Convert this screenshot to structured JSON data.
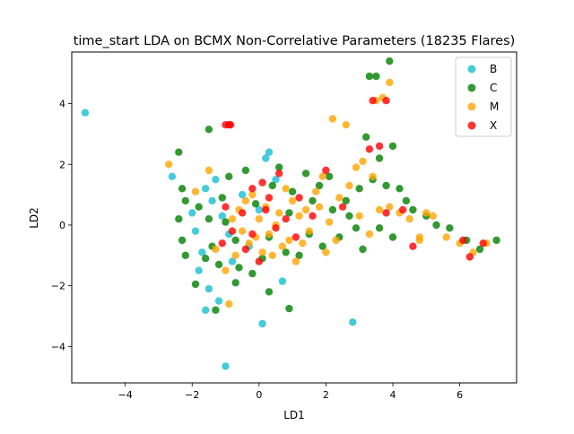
{
  "chart_data": {
    "type": "scatter",
    "title": "time_start LDA on BCMX Non-Correlative Parameters (18235 Flares)",
    "xlabel": "LD1",
    "ylabel": "LD2",
    "xlim": [
      -5.6,
      7.7
    ],
    "ylim": [
      -5.2,
      5.7
    ],
    "xticks": [
      -4,
      -2,
      0,
      2,
      4,
      6
    ],
    "yticks": [
      -4,
      -2,
      0,
      2,
      4
    ],
    "xtick_labels": [
      "−4",
      "−2",
      "0",
      "2",
      "4",
      "6"
    ],
    "ytick_labels": [
      "−4",
      "−2",
      "0",
      "2",
      "4"
    ],
    "grid": false,
    "legend_position": "top-right",
    "series": [
      {
        "name": "B",
        "color": "#17becf",
        "points": [
          [
            -5.2,
            3.7
          ],
          [
            -2.6,
            1.6
          ],
          [
            -1.0,
            -4.65
          ],
          [
            0.1,
            -3.25
          ],
          [
            2.8,
            -3.2
          ],
          [
            0.3,
            2.4
          ],
          [
            0.2,
            2.2
          ],
          [
            -1.6,
            -2.8
          ],
          [
            -1.8,
            -1.5
          ],
          [
            -2.0,
            0.4
          ],
          [
            -1.5,
            -2.1
          ],
          [
            -1.2,
            -2.5
          ],
          [
            -0.9,
            -0.3
          ],
          [
            -1.4,
            0.8
          ],
          [
            0.7,
            -1.85
          ],
          [
            -1.7,
            -0.9
          ],
          [
            -1.3,
            1.5
          ],
          [
            -0.5,
            1.0
          ],
          [
            0.5,
            1.5
          ],
          [
            -1.9,
            -0.2
          ],
          [
            -1.1,
            0.3
          ],
          [
            -0.8,
            -1.2
          ],
          [
            -1.6,
            1.2
          ],
          [
            -0.3,
            -0.7
          ],
          [
            0.0,
            0.5
          ]
        ]
      },
      {
        "name": "C",
        "color": "#008000",
        "points": [
          [
            3.9,
            5.4
          ],
          [
            3.3,
            4.9
          ],
          [
            3.5,
            4.9
          ],
          [
            -1.5,
            3.15
          ],
          [
            0.9,
            -2.75
          ],
          [
            -2.4,
            2.4
          ],
          [
            -2.3,
            1.2
          ],
          [
            -2.2,
            0.8
          ],
          [
            -2.4,
            0.2
          ],
          [
            -2.3,
            -0.5
          ],
          [
            -2.2,
            -1.0
          ],
          [
            -1.9,
            -1.95
          ],
          [
            -1.3,
            -2.8
          ],
          [
            -0.7,
            -1.9
          ],
          [
            0.3,
            -2.2
          ],
          [
            2.2,
            0.5
          ],
          [
            2.6,
            0.8
          ],
          [
            3.0,
            1.2
          ],
          [
            3.2,
            2.9
          ],
          [
            3.4,
            1.5
          ],
          [
            3.6,
            2.2
          ],
          [
            3.8,
            1.3
          ],
          [
            4.0,
            2.6
          ],
          [
            4.2,
            1.2
          ],
          [
            4.4,
            0.8
          ],
          [
            4.6,
            0.5
          ],
          [
            5.0,
            0.3
          ],
          [
            5.3,
            0.0
          ],
          [
            5.7,
            -0.1
          ],
          [
            6.2,
            -0.5
          ],
          [
            6.6,
            -0.8
          ],
          [
            7.1,
            -0.5
          ],
          [
            2.4,
            -0.4
          ],
          [
            3.1,
            -0.8
          ],
          [
            2.9,
            -0.1
          ],
          [
            -1.4,
            -0.7
          ],
          [
            -1.1,
            0.9
          ],
          [
            -0.6,
            -1.4
          ],
          [
            0.4,
            1.3
          ],
          [
            1.0,
            1.1
          ],
          [
            1.6,
            0.8
          ],
          [
            1.9,
            -0.7
          ],
          [
            -1.5,
            0.2
          ],
          [
            -0.9,
            1.6
          ],
          [
            0.1,
            -1.1
          ],
          [
            0.8,
            -0.9
          ],
          [
            -1.8,
            0.6
          ],
          [
            -1.2,
            -1.3
          ],
          [
            2.1,
            1.6
          ],
          [
            1.4,
            1.7
          ],
          [
            -0.4,
            1.8
          ],
          [
            0.6,
            1.9
          ],
          [
            -1.6,
            -1.1
          ],
          [
            2.7,
            0.3
          ],
          [
            3.6,
            -0.1
          ],
          [
            4.0,
            -0.4
          ],
          [
            1.2,
            -1.0
          ],
          [
            -0.2,
            -1.6
          ],
          [
            1.8,
            1.3
          ],
          [
            -1.0,
            0.1
          ],
          [
            -0.1,
            0.7
          ],
          [
            0.9,
            0.4
          ],
          [
            1.5,
            -0.3
          ],
          [
            -0.7,
            -0.5
          ],
          [
            0.3,
            -0.4
          ]
        ]
      },
      {
        "name": "M",
        "color": "#ffa500",
        "points": [
          [
            -2.7,
            2.0
          ],
          [
            3.9,
            4.7
          ],
          [
            3.7,
            4.2
          ],
          [
            2.2,
            3.5
          ],
          [
            2.6,
            3.3
          ],
          [
            3.5,
            4.1
          ],
          [
            3.1,
            2.1
          ],
          [
            3.4,
            1.6
          ],
          [
            2.9,
            1.9
          ],
          [
            -0.9,
            -2.6
          ],
          [
            -1.3,
            -0.8
          ],
          [
            -1.0,
            -1.5
          ],
          [
            -0.6,
            0.5
          ],
          [
            -0.3,
            -0.6
          ],
          [
            0.0,
            0.2
          ],
          [
            0.3,
            -0.3
          ],
          [
            0.6,
            0.4
          ],
          [
            0.9,
            -0.5
          ],
          [
            1.2,
            0.3
          ],
          [
            1.5,
            -0.2
          ],
          [
            1.8,
            0.6
          ],
          [
            2.1,
            0.1
          ],
          [
            2.4,
            0.9
          ],
          [
            2.7,
            1.3
          ],
          [
            3.0,
            0.3
          ],
          [
            3.3,
            -0.3
          ],
          [
            3.6,
            0.5
          ],
          [
            3.9,
            0.6
          ],
          [
            4.2,
            0.4
          ],
          [
            4.5,
            0.2
          ],
          [
            4.8,
            -0.5
          ],
          [
            5.0,
            0.4
          ],
          [
            5.2,
            0.3
          ],
          [
            5.6,
            -0.4
          ],
          [
            6.0,
            -0.6
          ],
          [
            6.4,
            -0.9
          ],
          [
            6.8,
            -0.6
          ],
          [
            -0.1,
            -0.4
          ],
          [
            0.5,
            0.0
          ],
          [
            1.0,
            0.8
          ],
          [
            -0.5,
            -0.2
          ],
          [
            0.2,
            0.6
          ],
          [
            0.7,
            -0.7
          ],
          [
            1.4,
            0.5
          ],
          [
            -0.8,
            0.2
          ],
          [
            0.4,
            -1.0
          ],
          [
            1.7,
            1.1
          ],
          [
            2.3,
            -0.5
          ],
          [
            -0.2,
            1.0
          ],
          [
            1.1,
            -1.2
          ],
          [
            -1.5,
            1.8
          ],
          [
            -1.9,
            1.1
          ],
          [
            0.8,
            1.2
          ],
          [
            1.9,
            1.6
          ],
          [
            4.8,
            -0.4
          ],
          [
            2.0,
            -0.9
          ],
          [
            0.1,
            -0.9
          ],
          [
            -0.4,
            0.8
          ],
          [
            1.3,
            -0.6
          ],
          [
            -0.7,
            -1.0
          ]
        ]
      },
      {
        "name": "X",
        "color": "#ff0000",
        "points": [
          [
            -1.0,
            3.3
          ],
          [
            -0.9,
            3.3
          ],
          [
            -0.85,
            3.3
          ],
          [
            3.3,
            2.5
          ],
          [
            3.6,
            2.6
          ],
          [
            3.4,
            4.1
          ],
          [
            3.8,
            4.1
          ],
          [
            2.0,
            1.8
          ],
          [
            0.1,
            1.4
          ],
          [
            0.6,
            1.7
          ],
          [
            -1.0,
            0.6
          ],
          [
            -0.8,
            -0.2
          ],
          [
            -0.5,
            0.4
          ],
          [
            -0.2,
            -0.3
          ],
          [
            0.2,
            0.5
          ],
          [
            0.5,
            -0.1
          ],
          [
            0.8,
            0.2
          ],
          [
            1.1,
            -0.4
          ],
          [
            -0.4,
            -0.8
          ],
          [
            0.3,
            0.9
          ],
          [
            1.6,
            0.3
          ],
          [
            2.5,
            0.6
          ],
          [
            3.8,
            0.4
          ],
          [
            4.3,
            0.5
          ],
          [
            4.6,
            -0.7
          ],
          [
            6.1,
            -0.5
          ],
          [
            6.3,
            -1.05
          ],
          [
            6.7,
            -0.6
          ],
          [
            -0.2,
            1.2
          ],
          [
            1.2,
            0.9
          ],
          [
            -1.1,
            -0.6
          ],
          [
            0.0,
            -1.2
          ]
        ]
      }
    ]
  }
}
